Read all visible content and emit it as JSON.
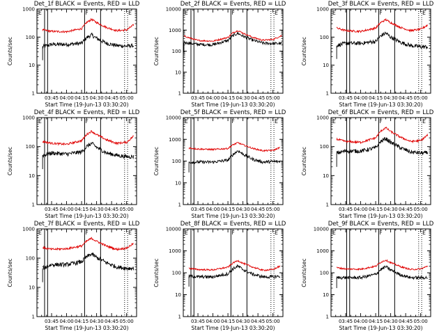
{
  "figure": {
    "colors": {
      "events": "#000000",
      "lld": "#e00000",
      "axes": "#000000",
      "background": "#ffffff"
    }
  },
  "chart_data": [
    {
      "type": "line",
      "title": "Det_1f BLACK = Events, RED = LLD",
      "xlabel": "Start Time (19-Jun-13 03:30:20)",
      "ylabel": "Counts/sec",
      "xlim": [
        "03:30:20",
        "05:10:00"
      ],
      "ylim": [
        1,
        1000
      ],
      "yscale": "log",
      "xticks": [
        "03:45",
        "04:00",
        "04:15",
        "04:30",
        "04:45",
        "05:00"
      ],
      "yticks": [
        "1",
        "10",
        "100",
        "1000"
      ],
      "solid_markers": [
        "03:38",
        "03:41",
        "04:18",
        "04:34"
      ],
      "dotted_markers": [
        "04:58",
        "05:01"
      ],
      "marker_labels": [
        {
          "text": "E",
          "at": "03:31"
        },
        {
          "text": "F",
          "at": "04:18"
        },
        {
          "text": "E",
          "at": "05:01"
        }
      ],
      "x": [
        "03:36",
        "03:45",
        "04:00",
        "04:15",
        "04:20",
        "04:25",
        "04:30",
        "04:40",
        "04:50",
        "05:00",
        "05:07"
      ],
      "series": [
        {
          "name": "Events",
          "values": [
            45,
            55,
            55,
            60,
            95,
            120,
            90,
            60,
            50,
            48,
            50
          ]
        },
        {
          "name": "LLD",
          "values": [
            180,
            160,
            155,
            200,
            330,
            430,
            330,
            220,
            170,
            180,
            270
          ]
        }
      ]
    },
    {
      "type": "line",
      "title": "Det_2f BLACK = Events, RED = LLD",
      "xlabel": "Start Time (19-Jun-13 03:30:20)",
      "ylabel": "Counts/sec",
      "xlim": [
        "03:30:20",
        "05:10:00"
      ],
      "ylim": [
        1,
        10000
      ],
      "yscale": "log",
      "xticks": [
        "03:45",
        "04:00",
        "04:15",
        "04:30",
        "04:45",
        "05:00"
      ],
      "yticks": [
        "1",
        "10",
        "100",
        "1000",
        "10000"
      ],
      "solid_markers": [
        "03:38",
        "03:41",
        "04:18",
        "04:34"
      ],
      "dotted_markers": [
        "04:58",
        "05:01"
      ],
      "marker_labels": [
        {
          "text": "E",
          "at": "03:31"
        },
        {
          "text": "F",
          "at": "04:18"
        },
        {
          "text": "E",
          "at": "05:01"
        }
      ],
      "x": [
        "03:31",
        "03:45",
        "04:00",
        "04:15",
        "04:20",
        "04:25",
        "04:30",
        "04:40",
        "04:50",
        "05:00",
        "05:09"
      ],
      "series": [
        {
          "name": "Events",
          "values": [
            260,
            210,
            200,
            320,
            550,
            700,
            520,
            330,
            240,
            230,
            230
          ]
        },
        {
          "name": "LLD",
          "values": [
            520,
            320,
            300,
            450,
            750,
            950,
            720,
            450,
            330,
            360,
            550
          ]
        }
      ]
    },
    {
      "type": "line",
      "title": "Det_3f BLACK = Events, RED = LLD",
      "xlabel": "Start Time (19-Jun-13 03:30:20)",
      "ylabel": "Counts/sec",
      "xlim": [
        "03:30:20",
        "05:10:00"
      ],
      "ylim": [
        1,
        1000
      ],
      "yscale": "log",
      "xticks": [
        "03:45",
        "04:00",
        "04:15",
        "04:30",
        "04:45",
        "05:00"
      ],
      "yticks": [
        "1",
        "10",
        "100",
        "1000"
      ],
      "solid_markers": [
        "03:46",
        "03:49",
        "04:18",
        "04:34"
      ],
      "dotted_markers": [
        "04:58",
        "05:01"
      ],
      "marker_labels": [
        {
          "text": "E",
          "at": "03:31"
        },
        {
          "text": "F",
          "at": "04:18"
        },
        {
          "text": "E",
          "at": "05:01"
        }
      ],
      "x": [
        "03:36",
        "03:45",
        "04:00",
        "04:15",
        "04:20",
        "04:25",
        "04:30",
        "04:40",
        "04:50",
        "05:00",
        "05:07"
      ],
      "series": [
        {
          "name": "Events",
          "values": [
            50,
            60,
            60,
            70,
            110,
            140,
            100,
            65,
            50,
            45,
            45
          ]
        },
        {
          "name": "LLD",
          "values": [
            210,
            170,
            160,
            210,
            330,
            420,
            330,
            220,
            170,
            190,
            270
          ]
        }
      ]
    },
    {
      "type": "line",
      "title": "Det_4f BLACK = Events, RED = LLD",
      "xlabel": "Start Time (19-Jun-13 03:30:20)",
      "ylabel": "Counts/sec",
      "xlim": [
        "03:30:20",
        "05:10:00"
      ],
      "ylim": [
        1,
        1000
      ],
      "yscale": "log",
      "xticks": [
        "03:45",
        "04:00",
        "04:15",
        "04:30",
        "04:45",
        "05:00"
      ],
      "yticks": [
        "1",
        "10",
        "100",
        "1000"
      ],
      "solid_markers": [
        "03:38",
        "03:41",
        "04:18",
        "04:34"
      ],
      "dotted_markers": [
        "04:58",
        "05:01"
      ],
      "marker_labels": [
        {
          "text": "E",
          "at": "03:31"
        },
        {
          "text": "F",
          "at": "04:18"
        },
        {
          "text": "E",
          "at": "05:01"
        }
      ],
      "x": [
        "03:36",
        "03:45",
        "04:00",
        "04:15",
        "04:20",
        "04:25",
        "04:30",
        "04:40",
        "04:50",
        "05:00",
        "05:07"
      ],
      "series": [
        {
          "name": "Events",
          "values": [
            50,
            60,
            55,
            65,
            100,
            130,
            95,
            60,
            50,
            45,
            45
          ]
        },
        {
          "name": "LLD",
          "values": [
            150,
            130,
            120,
            160,
            260,
            340,
            260,
            170,
            130,
            140,
            230
          ]
        }
      ]
    },
    {
      "type": "line",
      "title": "Det_5f BLACK = Events, RED = LLD",
      "xlabel": "Start Time (19-Jun-13 03:30:20)",
      "ylabel": "Counts/sec",
      "xlim": [
        "03:30:20",
        "05:10:00"
      ],
      "ylim": [
        1,
        10000
      ],
      "yscale": "log",
      "xticks": [
        "03:45",
        "04:00",
        "04:15",
        "04:30",
        "04:45",
        "05:00"
      ],
      "yticks": [
        "1",
        "10",
        "100",
        "1000",
        "10000"
      ],
      "solid_markers": [
        "03:38",
        "03:41",
        "04:18",
        "04:34"
      ],
      "dotted_markers": [
        "04:58",
        "05:01"
      ],
      "marker_labels": [
        {
          "text": "E",
          "at": "03:31"
        },
        {
          "text": "F",
          "at": "04:18"
        },
        {
          "text": "E",
          "at": "05:01"
        }
      ],
      "x": [
        "03:36",
        "03:45",
        "04:00",
        "04:15",
        "04:20",
        "04:25",
        "04:30",
        "04:40",
        "04:50",
        "05:00",
        "05:07"
      ],
      "series": [
        {
          "name": "Events",
          "values": [
            90,
            90,
            90,
            110,
            200,
            300,
            210,
            120,
            90,
            95,
            95
          ]
        },
        {
          "name": "LLD",
          "values": [
            400,
            360,
            340,
            380,
            560,
            700,
            560,
            380,
            300,
            310,
            420
          ]
        }
      ]
    },
    {
      "type": "line",
      "title": "Det_6f BLACK = Events, RED = LLD",
      "xlabel": "Start Time (19-Jun-13 03:30:20)",
      "ylabel": "Counts/sec",
      "xlim": [
        "03:30:20",
        "05:10:00"
      ],
      "ylim": [
        1,
        1000
      ],
      "yscale": "log",
      "xticks": [
        "03:45",
        "04:00",
        "04:15",
        "04:30",
        "04:45",
        "05:00"
      ],
      "yticks": [
        "1",
        "10",
        "100",
        "1000"
      ],
      "solid_markers": [
        "03:46",
        "03:49",
        "04:18",
        "04:34"
      ],
      "dotted_markers": [
        "04:58",
        "05:01"
      ],
      "marker_labels": [
        {
          "text": "E",
          "at": "03:31"
        },
        {
          "text": "F",
          "at": "04:18"
        },
        {
          "text": "E",
          "at": "05:01"
        }
      ],
      "x": [
        "03:36",
        "03:45",
        "04:00",
        "04:15",
        "04:20",
        "04:25",
        "04:30",
        "04:40",
        "04:50",
        "05:00",
        "05:07"
      ],
      "series": [
        {
          "name": "Events",
          "values": [
            60,
            70,
            70,
            90,
            150,
            190,
            140,
            90,
            65,
            60,
            60
          ]
        },
        {
          "name": "LLD",
          "values": [
            180,
            150,
            140,
            200,
            340,
            450,
            330,
            210,
            150,
            160,
            250
          ]
        }
      ]
    },
    {
      "type": "line",
      "title": "Det_7f BLACK = Events, RED = LLD",
      "xlabel": "Start Time (19-Jun-13 03:30:20)",
      "ylabel": "Counts/sec",
      "xlim": [
        "03:30:20",
        "05:10:00"
      ],
      "ylim": [
        1,
        1000
      ],
      "yscale": "log",
      "xticks": [
        "03:45",
        "04:00",
        "04:15",
        "04:30",
        "04:45",
        "05:00"
      ],
      "yticks": [
        "1",
        "10",
        "100",
        "1000"
      ],
      "solid_markers": [
        "03:38",
        "03:41",
        "04:18",
        "04:34"
      ],
      "dotted_markers": [
        "04:58",
        "05:01"
      ],
      "marker_labels": [
        {
          "text": "E",
          "at": "03:31"
        },
        {
          "text": "F",
          "at": "04:18"
        },
        {
          "text": "E",
          "at": "05:01"
        }
      ],
      "x": [
        "03:36",
        "03:45",
        "04:00",
        "04:15",
        "04:20",
        "04:25",
        "04:30",
        "04:40",
        "04:50",
        "05:00",
        "05:07"
      ],
      "series": [
        {
          "name": "Events",
          "values": [
            45,
            60,
            60,
            75,
            110,
            140,
            105,
            70,
            50,
            45,
            45
          ]
        },
        {
          "name": "LLD",
          "values": [
            230,
            200,
            210,
            260,
            380,
            480,
            380,
            260,
            200,
            220,
            320
          ]
        }
      ]
    },
    {
      "type": "line",
      "title": "Det_8f BLACK = Events, RED = LLD",
      "xlabel": "Start Time (19-Jun-13 03:30:20)",
      "ylabel": "Counts/sec",
      "xlim": [
        "03:30:20",
        "05:10:00"
      ],
      "ylim": [
        1,
        10000
      ],
      "yscale": "log",
      "xticks": [
        "03:45",
        "04:00",
        "04:15",
        "04:30",
        "04:45",
        "05:00"
      ],
      "yticks": [
        "1",
        "10",
        "100",
        "1000",
        "10000"
      ],
      "solid_markers": [
        "03:38",
        "03:41",
        "04:18",
        "04:34"
      ],
      "dotted_markers": [
        "04:58",
        "05:01"
      ],
      "marker_labels": [
        {
          "text": "E",
          "at": "03:31"
        },
        {
          "text": "F",
          "at": "04:18"
        },
        {
          "text": "E",
          "at": "05:01"
        }
      ],
      "x": [
        "03:36",
        "03:45",
        "04:00",
        "04:15",
        "04:20",
        "04:25",
        "04:30",
        "04:40",
        "04:50",
        "05:00",
        "05:07"
      ],
      "series": [
        {
          "name": "Events",
          "values": [
            70,
            65,
            65,
            90,
            150,
            200,
            140,
            85,
            65,
            65,
            70
          ]
        },
        {
          "name": "LLD",
          "values": [
            160,
            140,
            135,
            180,
            280,
            360,
            270,
            180,
            130,
            140,
            200
          ]
        }
      ]
    },
    {
      "type": "line",
      "title": "Det_9f BLACK = Events, RED = LLD",
      "xlabel": "Start Time (19-Jun-13 03:30:20)",
      "ylabel": "Counts/sec",
      "xlim": [
        "03:30:20",
        "05:10:00"
      ],
      "ylim": [
        1,
        10000
      ],
      "yscale": "log",
      "xticks": [
        "03:45",
        "04:00",
        "04:15",
        "04:30",
        "04:45",
        "05:00"
      ],
      "yticks": [
        "1",
        "10",
        "100",
        "1000",
        "10000"
      ],
      "solid_markers": [
        "03:46",
        "03:49",
        "04:18",
        "04:34"
      ],
      "dotted_markers": [
        "04:58",
        "05:01"
      ],
      "marker_labels": [
        {
          "text": "E",
          "at": "03:31"
        },
        {
          "text": "F",
          "at": "04:18"
        },
        {
          "text": "E",
          "at": "05:01"
        }
      ],
      "x": [
        "03:36",
        "03:45",
        "04:00",
        "04:15",
        "04:20",
        "04:25",
        "04:30",
        "04:40",
        "04:50",
        "05:00",
        "05:07"
      ],
      "series": [
        {
          "name": "Events",
          "values": [
            60,
            60,
            60,
            85,
            140,
            190,
            135,
            80,
            60,
            60,
            60
          ]
        },
        {
          "name": "LLD",
          "values": [
            170,
            150,
            145,
            200,
            300,
            380,
            290,
            190,
            140,
            150,
            200
          ]
        }
      ]
    }
  ]
}
